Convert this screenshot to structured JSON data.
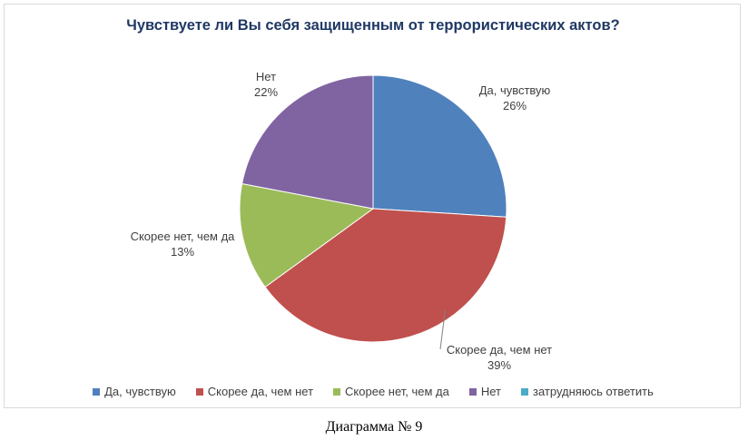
{
  "chart_data": {
    "type": "pie",
    "title": "Чувствуете ли Вы себя защищенным от террористических актов?",
    "slices": [
      {
        "name": "Да, чувствую",
        "value": 26,
        "label_line1": "Да, чувствую",
        "label_line2": "26%",
        "color": "#4f81bd"
      },
      {
        "name": "Скорее да, чем нет",
        "value": 39,
        "label_line1": "Скорее да, чем нет",
        "label_line2": "39%",
        "color": "#c0504d"
      },
      {
        "name": "Скорее нет, чем да",
        "value": 13,
        "label_line1": "Скорее нет, чем да",
        "label_line2": "13%",
        "color": "#9bbb59"
      },
      {
        "name": "Нет",
        "value": 22,
        "label_line1": "Нет",
        "label_line2": "22%",
        "color": "#8064a2"
      },
      {
        "name": "затрудняюсь ответить",
        "value": 0,
        "label_line1": "",
        "label_line2": "",
        "color": "#4bacc6"
      }
    ],
    "legend": {
      "position": "bottom"
    }
  },
  "caption": "Диаграмма № 9"
}
